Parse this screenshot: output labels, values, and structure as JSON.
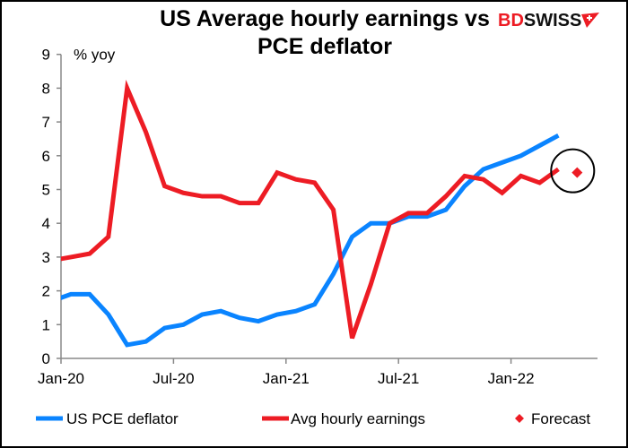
{
  "chart_data": {
    "type": "line",
    "title": "US Average hourly earnings vs PCE deflator",
    "ylabel": "% yoy",
    "ylim": [
      0,
      9
    ],
    "yticks": [
      "0",
      "1",
      "2",
      "3",
      "4",
      "5",
      "6",
      "7",
      "8",
      "9"
    ],
    "xtick_labels": [
      "Jan-20",
      "Jul-20",
      "Jan-21",
      "Jul-21",
      "Jan-22"
    ],
    "x": [
      "Dec-19",
      "Jan-20",
      "Feb-20",
      "Mar-20",
      "Apr-20",
      "May-20",
      "Jun-20",
      "Jul-20",
      "Aug-20",
      "Sep-20",
      "Oct-20",
      "Nov-20",
      "Dec-20",
      "Jan-21",
      "Feb-21",
      "Mar-21",
      "Apr-21",
      "May-21",
      "Jun-21",
      "Jul-21",
      "Aug-21",
      "Sep-21",
      "Oct-21",
      "Nov-21",
      "Dec-21",
      "Jan-22",
      "Feb-22",
      "Mar-22"
    ],
    "series": [
      {
        "name": "US PCE deflator",
        "color": "#0A84FF",
        "values": [
          1.7,
          1.9,
          1.9,
          1.3,
          0.4,
          0.5,
          0.9,
          1.0,
          1.3,
          1.4,
          1.2,
          1.1,
          1.3,
          1.4,
          1.6,
          2.5,
          3.6,
          4.0,
          4.0,
          4.2,
          4.2,
          4.4,
          5.1,
          5.6,
          5.8,
          6.0,
          6.3,
          6.6
        ]
      },
      {
        "name": "Avg hourly earnings",
        "color": "#ED1C24",
        "values": [
          2.9,
          3.0,
          3.1,
          3.6,
          8.0,
          6.7,
          5.1,
          4.9,
          4.8,
          4.8,
          4.6,
          4.6,
          5.5,
          5.3,
          5.2,
          4.4,
          0.6,
          2.2,
          4.0,
          4.3,
          4.3,
          4.8,
          5.4,
          5.3,
          4.9,
          5.4,
          5.2,
          5.6
        ]
      }
    ],
    "forecast": {
      "name": "Forecast",
      "color": "#ED1C24",
      "x": "Apr-22",
      "value": 5.5,
      "marker": "diamond",
      "circled": true
    },
    "grid": false,
    "legend_placement": "bottom"
  },
  "logo": {
    "part1": "BD",
    "part2": "SWISS",
    "color": "#ED1C24"
  }
}
